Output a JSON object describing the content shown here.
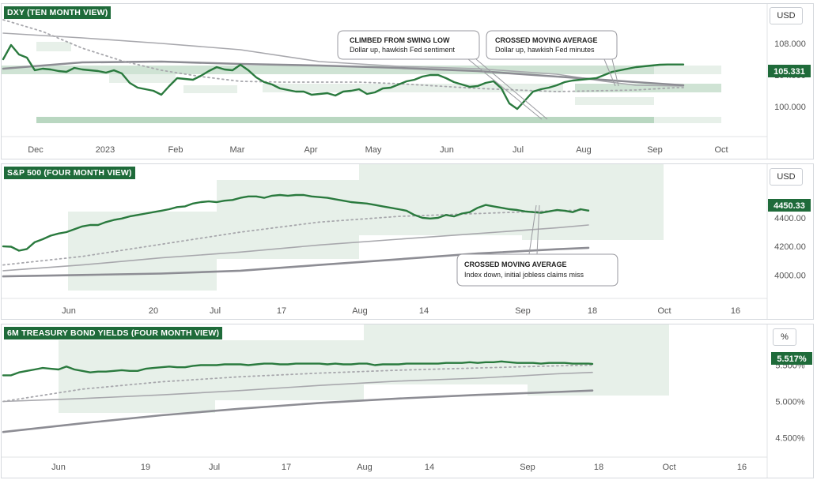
{
  "colors": {
    "price": "#2a7a3e",
    "band": "#cfe3d4",
    "band_light": "#e7f0e9",
    "ma_light": "#a8a8ad",
    "ma_dark": "#8d8d94",
    "badge": "#1f6b3a"
  },
  "chart_data": [
    {
      "type": "line",
      "title": "DXY (TEN MONTH VIEW)",
      "unit": "USD",
      "current_value_label": "105.331",
      "x_ticks": [
        "Dec",
        "2023",
        "Feb",
        "Mar",
        "Apr",
        "May",
        "Jun",
        "Jul",
        "Aug",
        "Sep",
        "Oct"
      ],
      "y_ticks": [
        "100.000",
        "104.000",
        "108.000"
      ],
      "ylim": [
        97.0,
        112.0
      ],
      "series": [
        {
          "role": "price",
          "x": [
            0,
            10,
            20,
            30,
            40,
            50,
            60,
            70,
            80,
            90,
            100,
            110,
            120,
            130,
            140,
            150,
            160,
            170,
            180,
            190,
            200,
            210,
            220,
            230,
            240,
            250,
            260,
            270,
            280,
            290,
            300,
            310,
            320,
            330,
            340,
            350,
            360,
            370,
            380,
            390,
            400,
            410,
            420,
            430,
            440,
            450,
            460,
            470,
            480,
            490,
            500,
            510,
            520,
            530,
            540,
            550,
            560,
            570,
            580,
            590,
            600,
            610,
            620,
            630,
            640,
            650,
            660,
            670,
            680,
            690,
            700,
            710,
            720,
            730,
            740,
            750,
            760,
            770,
            780,
            790,
            800,
            810,
            820,
            830,
            840,
            850,
            860
          ],
          "values": [
            106.0,
            107.8,
            106.6,
            106.2,
            104.6,
            104.8,
            104.7,
            104.5,
            104.4,
            104.9,
            104.7,
            104.6,
            104.5,
            104.3,
            104.6,
            104.2,
            103.0,
            102.4,
            102.2,
            102.0,
            101.5,
            102.6,
            103.6,
            103.5,
            103.4,
            103.9,
            104.5,
            105.0,
            104.7,
            104.6,
            105.3,
            104.6,
            103.7,
            103.1,
            102.8,
            102.3,
            102.1,
            101.9,
            101.9,
            101.5,
            101.6,
            101.7,
            101.4,
            101.9,
            102.0,
            102.2,
            101.6,
            101.8,
            102.3,
            102.4,
            102.8,
            103.2,
            103.4,
            103.8,
            104.0,
            104.0,
            103.6,
            103.1,
            102.8,
            102.5,
            102.6,
            103.0,
            103.2,
            102.3,
            100.4,
            99.7,
            100.8,
            101.9,
            102.2,
            102.4,
            102.7,
            103.1,
            103.3,
            103.4,
            103.5,
            103.6,
            104.0,
            104.4,
            104.6,
            104.8,
            105.0,
            105.1,
            105.2,
            105.3,
            105.331,
            105.331,
            105.331
          ]
        },
        {
          "role": "ma_fast",
          "x": [
            0,
            50,
            100,
            150,
            200,
            250,
            300,
            350,
            400,
            450,
            500,
            550,
            600,
            650,
            700,
            750,
            800,
            850,
            860
          ],
          "values": [
            111.0,
            109.5,
            107.4,
            105.8,
            104.6,
            103.8,
            103.2,
            103.1,
            103.1,
            103.1,
            102.9,
            102.6,
            102.3,
            102.1,
            101.9,
            102.0,
            102.1,
            102.4,
            102.4
          ]
        },
        {
          "role": "ma_mid",
          "x": [
            0,
            100,
            200,
            300,
            400,
            500,
            600,
            700,
            760,
            800,
            860
          ],
          "values": [
            109.3,
            108.7,
            108.0,
            107.2,
            105.7,
            105.1,
            104.8,
            104.1,
            103.2,
            102.7,
            102.6
          ]
        },
        {
          "role": "ma_slow",
          "x": [
            0,
            100,
            200,
            300,
            400,
            500,
            600,
            700,
            800,
            860
          ],
          "values": [
            104.8,
            105.6,
            105.7,
            105.4,
            105.2,
            104.9,
            104.5,
            103.8,
            103.1,
            102.7
          ]
        }
      ],
      "annotations": [
        {
          "title": "CLIMBED FROM SWING LOW",
          "text": "Dollar up, hawkish Fed sentiment"
        },
        {
          "title": "CROSSED MOVING AVERAGE",
          "text": "Dollar up, hawkish Fed minutes"
        }
      ]
    },
    {
      "type": "line",
      "title": "S&P 500 (FOUR MONTH VIEW)",
      "unit": "USD",
      "current_value_label": "4450.33",
      "x_ticks": [
        "Jun",
        "20",
        "Jul",
        "17",
        "Aug",
        "14",
        "Sep",
        "18",
        "Oct",
        "16"
      ],
      "y_ticks": [
        "4000.00",
        "4200.00",
        "4400.00"
      ],
      "ylim": [
        3880,
        4720
      ],
      "series": [
        {
          "role": "price",
          "x": [
            0,
            10,
            20,
            30,
            40,
            50,
            60,
            70,
            80,
            90,
            100,
            110,
            120,
            130,
            140,
            150,
            160,
            170,
            180,
            190,
            200,
            210,
            220,
            230,
            240,
            250,
            260,
            270,
            280,
            290,
            300,
            310,
            320,
            330,
            340,
            350,
            360,
            370,
            380,
            390,
            400,
            410,
            420,
            430,
            440,
            450,
            460,
            470,
            480,
            490,
            500,
            510,
            520,
            530,
            540,
            550,
            560,
            570,
            580,
            590,
            600,
            610,
            620,
            630,
            640,
            650,
            660,
            670,
            680,
            690,
            700,
            710,
            720,
            730,
            740
          ],
          "values": [
            4200,
            4198,
            4170,
            4182,
            4230,
            4250,
            4275,
            4290,
            4300,
            4320,
            4340,
            4350,
            4350,
            4370,
            4385,
            4395,
            4410,
            4420,
            4430,
            4440,
            4450,
            4460,
            4475,
            4480,
            4500,
            4510,
            4515,
            4510,
            4520,
            4525,
            4540,
            4550,
            4550,
            4540,
            4555,
            4560,
            4555,
            4560,
            4560,
            4550,
            4545,
            4540,
            4530,
            4520,
            4510,
            4505,
            4500,
            4490,
            4480,
            4470,
            4460,
            4450,
            4420,
            4400,
            4395,
            4400,
            4420,
            4410,
            4430,
            4440,
            4470,
            4490,
            4480,
            4470,
            4460,
            4455,
            4445,
            4440,
            4435,
            4445,
            4455,
            4450,
            4440,
            4460,
            4450.33
          ]
        },
        {
          "role": "ma_fast",
          "x": [
            0,
            100,
            200,
            300,
            400,
            500,
            600,
            700,
            740
          ],
          "values": [
            4070,
            4130,
            4215,
            4300,
            4370,
            4410,
            4430,
            4450,
            4455
          ]
        },
        {
          "role": "ma_mid",
          "x": [
            0,
            100,
            200,
            300,
            400,
            500,
            600,
            700,
            740
          ],
          "values": [
            4030,
            4070,
            4120,
            4160,
            4210,
            4250,
            4290,
            4330,
            4350
          ]
        },
        {
          "role": "ma_slow",
          "x": [
            0,
            100,
            200,
            300,
            400,
            500,
            600,
            700,
            740
          ],
          "values": [
            3990,
            4000,
            4010,
            4030,
            4070,
            4110,
            4150,
            4180,
            4190
          ]
        }
      ],
      "annotations": [
        {
          "title": "CROSSED MOVING AVERAGE",
          "text": "Index down, initial jobless claims miss"
        }
      ]
    },
    {
      "type": "line",
      "title": "6M TREASURY BOND YIELDS (FOUR MONTH VIEW)",
      "unit": "%",
      "current_value_label": "5.517%",
      "x_ticks": [
        "Jun",
        "19",
        "Jul",
        "17",
        "Aug",
        "14",
        "Sep",
        "18",
        "Oct",
        "16"
      ],
      "y_ticks": [
        "4.500%",
        "5.000%",
        "5.500%"
      ],
      "ylim": [
        4.3,
        5.95
      ],
      "series": [
        {
          "role": "price",
          "x": [
            0,
            10,
            20,
            30,
            40,
            50,
            60,
            70,
            80,
            90,
            100,
            110,
            120,
            130,
            140,
            150,
            160,
            170,
            180,
            190,
            200,
            210,
            220,
            230,
            240,
            250,
            260,
            270,
            280,
            290,
            300,
            310,
            320,
            330,
            340,
            350,
            360,
            370,
            380,
            390,
            400,
            410,
            420,
            430,
            440,
            450,
            460,
            470,
            480,
            490,
            500,
            510,
            520,
            530,
            540,
            550,
            560,
            570,
            580,
            590,
            600,
            610,
            620,
            630,
            640,
            650,
            660,
            670,
            680,
            690,
            700,
            710,
            720,
            730,
            740,
            745
          ],
          "values": [
            5.36,
            5.36,
            5.4,
            5.42,
            5.44,
            5.46,
            5.45,
            5.44,
            5.48,
            5.44,
            5.42,
            5.4,
            5.41,
            5.41,
            5.42,
            5.43,
            5.42,
            5.42,
            5.45,
            5.46,
            5.47,
            5.48,
            5.47,
            5.47,
            5.49,
            5.5,
            5.5,
            5.5,
            5.51,
            5.51,
            5.51,
            5.5,
            5.51,
            5.52,
            5.52,
            5.51,
            5.51,
            5.52,
            5.52,
            5.52,
            5.52,
            5.51,
            5.52,
            5.51,
            5.51,
            5.52,
            5.52,
            5.5,
            5.51,
            5.51,
            5.51,
            5.52,
            5.52,
            5.52,
            5.52,
            5.52,
            5.53,
            5.53,
            5.53,
            5.54,
            5.53,
            5.54,
            5.54,
            5.55,
            5.54,
            5.53,
            5.53,
            5.53,
            5.52,
            5.53,
            5.53,
            5.53,
            5.52,
            5.52,
            5.52,
            5.517
          ]
        },
        {
          "role": "ma_fast",
          "x": [
            0,
            100,
            200,
            300,
            400,
            500,
            600,
            700,
            745
          ],
          "values": [
            5.0,
            5.17,
            5.27,
            5.34,
            5.39,
            5.43,
            5.46,
            5.49,
            5.5
          ]
        },
        {
          "role": "ma_mid",
          "x": [
            0,
            100,
            200,
            300,
            400,
            500,
            600,
            700,
            745
          ],
          "values": [
            5.0,
            5.04,
            5.09,
            5.15,
            5.22,
            5.28,
            5.32,
            5.38,
            5.4
          ]
        },
        {
          "role": "ma_slow",
          "x": [
            0,
            100,
            200,
            300,
            400,
            500,
            600,
            700,
            745
          ],
          "values": [
            4.58,
            4.7,
            4.81,
            4.9,
            4.98,
            5.04,
            5.09,
            5.13,
            5.15
          ]
        }
      ],
      "annotations": []
    }
  ]
}
